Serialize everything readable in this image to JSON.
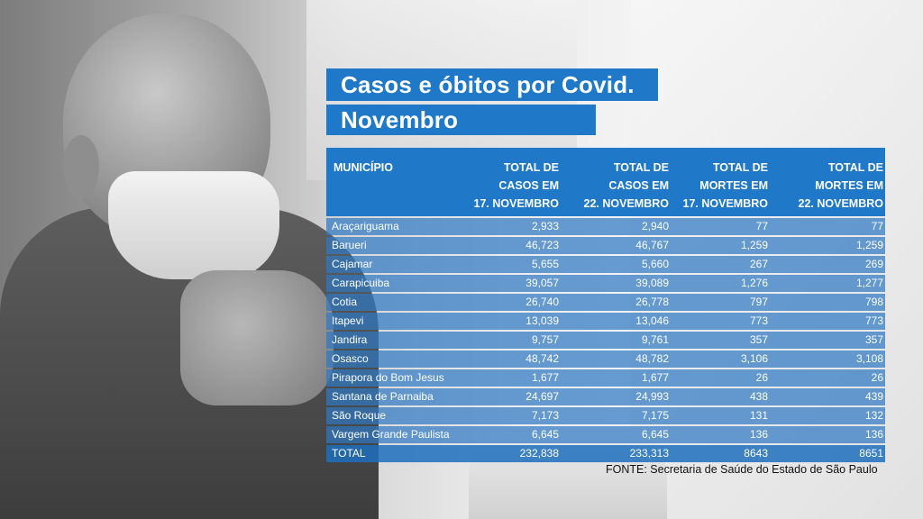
{
  "title_line1": "Casos e óbitos por Covid.",
  "title_line2": "Novembro",
  "table": {
    "headers": [
      [
        "MUNICÍPIO",
        "",
        ""
      ],
      [
        "TOTAL DE",
        "CASOS EM",
        "17. NOVEMBRO"
      ],
      [
        "TOTAL DE",
        "CASOS EM",
        "22. NOVEMBRO"
      ],
      [
        "TOTAL DE",
        "MORTES EM",
        "17. NOVEMBRO"
      ],
      [
        "TOTAL DE",
        "MORTES EM",
        "22. NOVEMBRO"
      ]
    ],
    "rows": [
      [
        "Araçariguama",
        "2,933",
        "2,940",
        "77",
        "77"
      ],
      [
        "Barueri",
        "46,723",
        "46,767",
        "1,259",
        "1,259"
      ],
      [
        "Cajamar",
        "5,655",
        "5,660",
        "267",
        "269"
      ],
      [
        "Carapicuiba",
        "39,057",
        "39,089",
        "1,276",
        "1,277"
      ],
      [
        "Cotia",
        "26,740",
        "26,778",
        "797",
        "798"
      ],
      [
        "Itapevi",
        "13,039",
        "13,046",
        "773",
        "773"
      ],
      [
        "Jandira",
        "9,757",
        "9,761",
        "357",
        "357"
      ],
      [
        "Osasco",
        "48,742",
        "48,782",
        "3,106",
        "3,108"
      ],
      [
        "Pirapora do Bom Jesus",
        "1,677",
        "1,677",
        "26",
        "26"
      ],
      [
        "Santana de Parnaiba",
        "24,697",
        "24,993",
        "438",
        "439"
      ],
      [
        "São Roque",
        "7,173",
        "7,175",
        "131",
        "132"
      ],
      [
        "Vargem Grande Paulista",
        "6,645",
        "6,645",
        "136",
        "136"
      ],
      [
        "TOTAL",
        "232,838",
        "233,313",
        "8643",
        "8651"
      ]
    ]
  },
  "source": "FONTE: Secretaria de Saúde do Estado de São Paulo"
}
